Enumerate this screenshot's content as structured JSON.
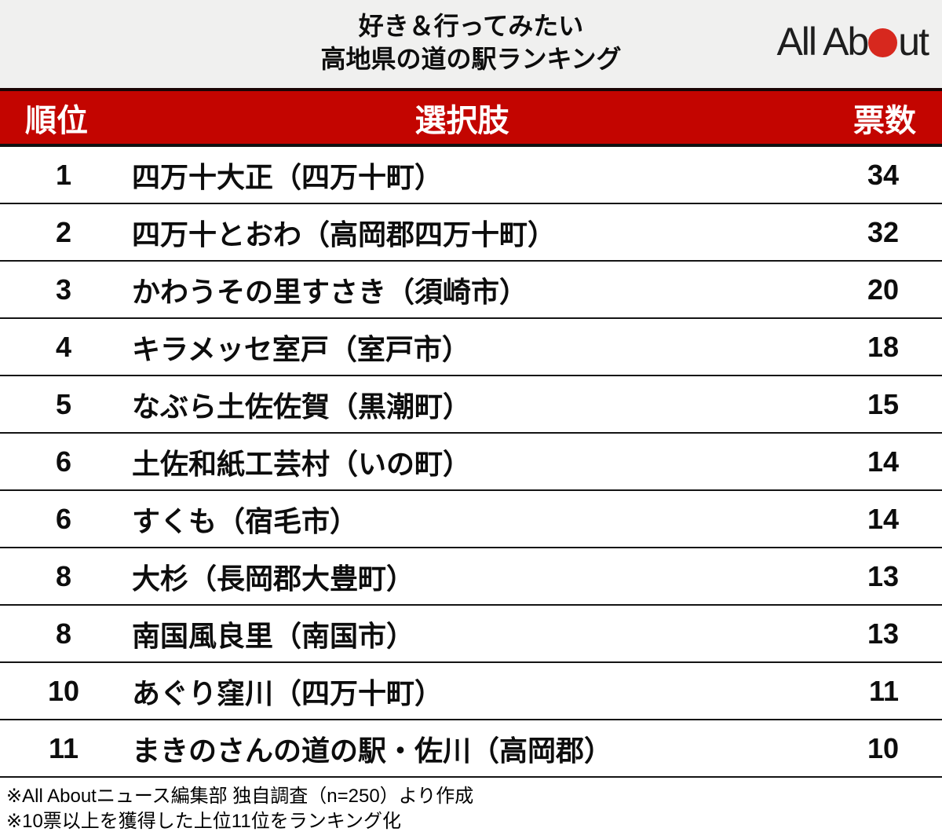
{
  "header": {
    "title_line1": "好き＆行ってみたい",
    "title_line2": "高地県の道の駅ランキング",
    "logo": {
      "name": "All About",
      "text_before": "All Ab",
      "text_after": "ut"
    }
  },
  "table": {
    "columns": {
      "rank": "順位",
      "choice": "選択肢",
      "votes": "票数"
    },
    "rows": [
      {
        "rank": "1",
        "choice": "四万十大正（四万十町）",
        "votes": "34"
      },
      {
        "rank": "2",
        "choice": "四万十とおわ（高岡郡四万十町）",
        "votes": "32"
      },
      {
        "rank": "3",
        "choice": "かわうその里すさき（須崎市）",
        "votes": "20"
      },
      {
        "rank": "4",
        "choice": "キラメッセ室戸（室戸市）",
        "votes": "18"
      },
      {
        "rank": "5",
        "choice": "なぶら土佐佐賀（黒潮町）",
        "votes": "15"
      },
      {
        "rank": "6",
        "choice": "土佐和紙工芸村（いの町）",
        "votes": "14"
      },
      {
        "rank": "6",
        "choice": "すくも（宿毛市）",
        "votes": "14"
      },
      {
        "rank": "8",
        "choice": "大杉（長岡郡大豊町）",
        "votes": "13"
      },
      {
        "rank": "8",
        "choice": "南国風良里（南国市）",
        "votes": "13"
      },
      {
        "rank": "10",
        "choice": "あぐり窪川（四万十町）",
        "votes": "11"
      },
      {
        "rank": "11",
        "choice": "まきのさんの道の駅・佐川（高岡郡）",
        "votes": "10"
      }
    ]
  },
  "footer": {
    "note1": "※All Aboutニュース編集部 独自調査（n=250）より作成",
    "note2": "※10票以上を獲得した上位11位をランキング化"
  },
  "colors": {
    "accent_red": "#c30500",
    "logo_dot_red": "#d7281e",
    "header_bg": "#f0f0ef",
    "row_divider": "#141414",
    "header_text": "#ffffff"
  },
  "chart_data": {
    "type": "table",
    "title": "好き＆行ってみたい 高地県の道の駅ランキング",
    "columns": [
      "順位",
      "選択肢",
      "票数"
    ],
    "ranks": [
      1,
      2,
      3,
      4,
      5,
      6,
      6,
      8,
      8,
      10,
      11
    ],
    "categories": [
      "四万十大正（四万十町）",
      "四万十とおわ（高岡郡四万十町）",
      "かわうその里すさき（須崎市）",
      "キラメッセ室戸（室戸市）",
      "なぶら土佐佐賀（黒潮町）",
      "土佐和紙工芸村（いの町）",
      "すくも（宿毛市）",
      "大杉（長岡郡大豊町）",
      "南国風良里（南国市）",
      "あぐり窪川（四万十町）",
      "まきのさんの道の駅・佐川（高岡郡）"
    ],
    "values": [
      34,
      32,
      20,
      18,
      15,
      14,
      14,
      13,
      13,
      11,
      10
    ],
    "source_note": "※All Aboutニュース編集部 独自調査（n=250）より作成",
    "method_note": "※10票以上を獲得した上位11位をランキング化"
  }
}
